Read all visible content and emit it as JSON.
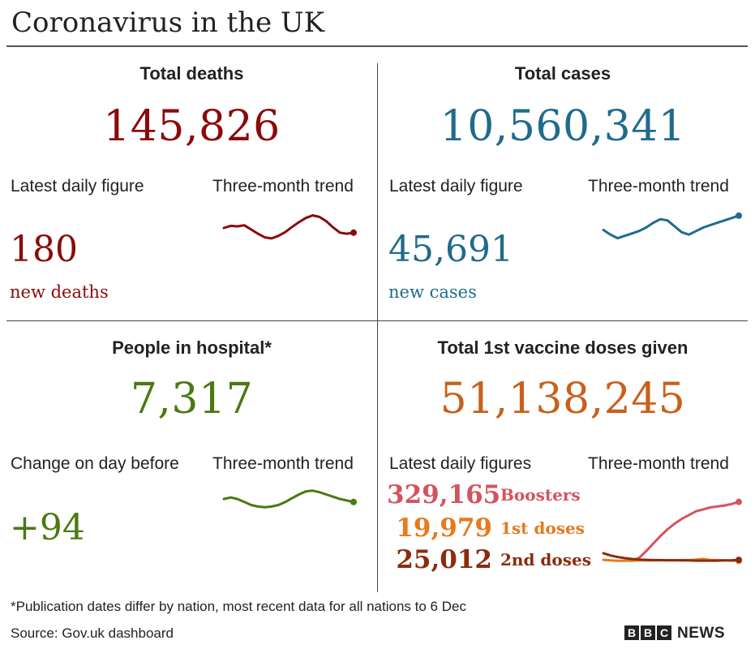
{
  "title": "Coronavirus in the UK",
  "colors": {
    "deaths": "#8b0a0a",
    "cases": "#1f6b8c",
    "hospital": "#4a7a12",
    "vaccine_total": "#c9601a",
    "boosters": "#d3545f",
    "first_doses": "#e8791d",
    "second_doses": "#8b2c0e"
  },
  "deaths": {
    "heading": "Total deaths",
    "total": "145,826",
    "latest_label": "Latest daily figure",
    "trend_label": "Three-month trend",
    "daily": "180",
    "unit": "new deaths"
  },
  "cases": {
    "heading": "Total cases",
    "total": "10,560,341",
    "latest_label": "Latest daily figure",
    "trend_label": "Three-month trend",
    "daily": "45,691",
    "unit": "new cases"
  },
  "hospital": {
    "heading": "People in hospital*",
    "total": "7,317",
    "latest_label": "Change on day before",
    "trend_label": "Three-month trend",
    "daily": "+94"
  },
  "vaccine": {
    "heading": "Total 1st vaccine doses given",
    "total": "51,138,245",
    "latest_label": "Latest daily figures",
    "trend_label": "Three-month trend",
    "boosters_value": "329,165",
    "boosters_label": "Boosters",
    "first_value": "19,979",
    "first_label": "1st doses",
    "second_value": "25,012",
    "second_label": "2nd doses"
  },
  "footnote": "*Publication dates differ by nation, most recent data for all nations to 6 Dec",
  "source": "Source: Gov.uk dashboard",
  "brand": {
    "letters": [
      "B",
      "B",
      "C"
    ],
    "news": "NEWS"
  },
  "chart_data": [
    {
      "type": "line",
      "id": "deaths-trend",
      "series": [
        {
          "values": [
            121,
            125,
            124,
            126,
            118,
            110,
            103,
            101,
            106,
            113,
            123,
            132,
            140,
            145,
            142,
            134,
            122,
            112,
            110,
            112
          ]
        }
      ],
      "ylim": [
        90,
        155
      ]
    },
    {
      "type": "line",
      "id": "cases-trend",
      "series": [
        {
          "values": [
            34,
            30,
            27,
            29,
            31,
            33,
            36,
            40,
            43,
            42,
            37,
            32,
            30,
            33,
            36,
            38,
            40,
            42,
            44,
            46
          ]
        }
      ],
      "ylim": [
        24,
        50
      ]
    },
    {
      "type": "line",
      "id": "hospital-trend",
      "series": [
        {
          "values": [
            86,
            88,
            86,
            82,
            78,
            76,
            75,
            76,
            78,
            82,
            87,
            92,
            96,
            97,
            95,
            92,
            89,
            86,
            84,
            82
          ]
        }
      ],
      "ylim": [
        70,
        100
      ]
    },
    {
      "type": "line",
      "id": "vaccine-trend",
      "ylim": [
        0,
        400
      ],
      "series": [
        {
          "name": "Boosters",
          "values": [
            null,
            null,
            null,
            null,
            20,
            35,
            70,
            110,
            150,
            185,
            215,
            240,
            260,
            280,
            290,
            300,
            305,
            310,
            318,
            329
          ]
        },
        {
          "name": "1st doses",
          "values": [
            25,
            22,
            20,
            20,
            21,
            22,
            22,
            22,
            23,
            23,
            23,
            24,
            24,
            26,
            30,
            24,
            24,
            22,
            21,
            20
          ]
        },
        {
          "name": "2nd doses",
          "values": [
            60,
            48,
            40,
            34,
            30,
            27,
            25,
            24,
            24,
            23,
            23,
            22,
            22,
            21,
            21,
            21,
            21,
            22,
            23,
            25
          ]
        }
      ]
    }
  ]
}
